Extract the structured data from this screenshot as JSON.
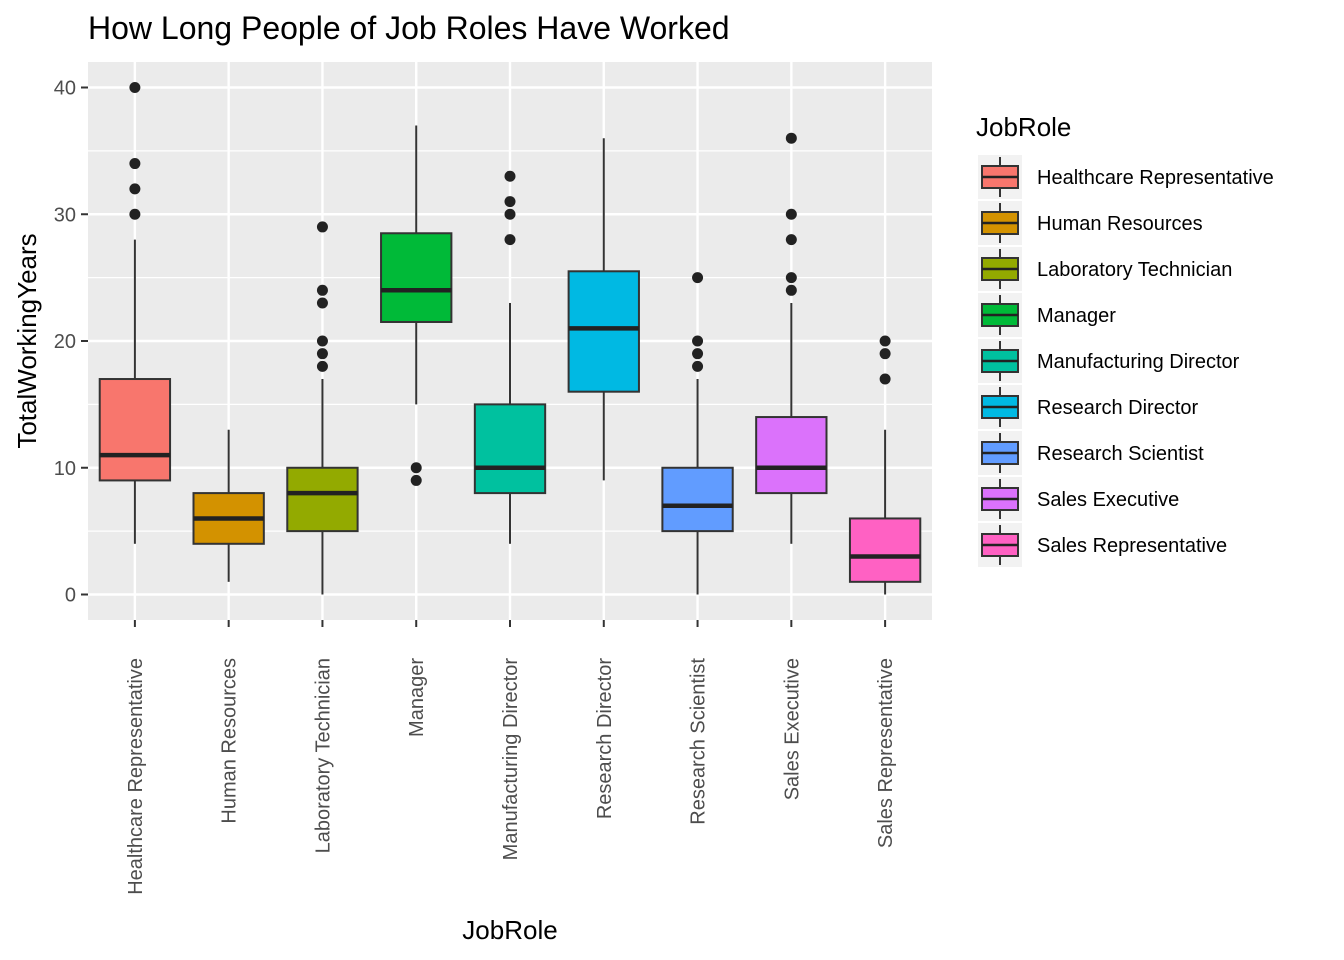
{
  "chart_data": {
    "type": "boxplot",
    "title": "How Long People of Job Roles Have Worked",
    "xlabel": "JobRole",
    "ylabel": "TotalWorkingYears",
    "ylim": [
      -2,
      42
    ],
    "yticks": [
      0,
      10,
      20,
      30,
      40
    ],
    "grid": true,
    "legend": {
      "title": "JobRole",
      "placement": "right"
    },
    "categories": [
      "Healthcare Representative",
      "Human Resources",
      "Laboratory Technician",
      "Manager",
      "Manufacturing Director",
      "Research Director",
      "Research Scientist",
      "Sales Executive",
      "Sales Representative"
    ],
    "series": [
      {
        "name": "Healthcare Representative",
        "color": "#F8766D",
        "min": 4,
        "q1": 9,
        "median": 11,
        "q3": 17,
        "max": 28,
        "outliers": [
          30,
          32,
          34,
          40
        ]
      },
      {
        "name": "Human Resources",
        "color": "#D39200",
        "min": 1,
        "q1": 4,
        "median": 6,
        "q3": 8,
        "max": 13,
        "outliers": []
      },
      {
        "name": "Laboratory Technician",
        "color": "#93AA00",
        "min": 0,
        "q1": 5,
        "median": 8,
        "q3": 10,
        "max": 17,
        "outliers": [
          18,
          19,
          20,
          23,
          24,
          29
        ]
      },
      {
        "name": "Manager",
        "color": "#00BA38",
        "min": 15,
        "q1": 21.5,
        "median": 24,
        "q3": 28.5,
        "max": 37,
        "outliers": [
          9,
          10
        ]
      },
      {
        "name": "Manufacturing Director",
        "color": "#00C19F",
        "min": 4,
        "q1": 8,
        "median": 10,
        "q3": 15,
        "max": 23,
        "outliers": [
          28,
          30,
          31,
          33
        ]
      },
      {
        "name": "Research Director",
        "color": "#00B9E3",
        "min": 9,
        "q1": 16,
        "median": 21,
        "q3": 25.5,
        "max": 36,
        "outliers": []
      },
      {
        "name": "Research Scientist",
        "color": "#619CFF",
        "min": 0,
        "q1": 5,
        "median": 7,
        "q3": 10,
        "max": 17,
        "outliers": [
          18,
          19,
          20,
          25
        ]
      },
      {
        "name": "Sales Executive",
        "color": "#DB72FB",
        "min": 4,
        "q1": 8,
        "median": 10,
        "q3": 14,
        "max": 23,
        "outliers": [
          24,
          25,
          28,
          30,
          36
        ]
      },
      {
        "name": "Sales Representative",
        "color": "#FF61C3",
        "min": 0,
        "q1": 1,
        "median": 3,
        "q3": 6,
        "max": 13,
        "outliers": [
          17,
          19,
          20
        ]
      }
    ]
  }
}
